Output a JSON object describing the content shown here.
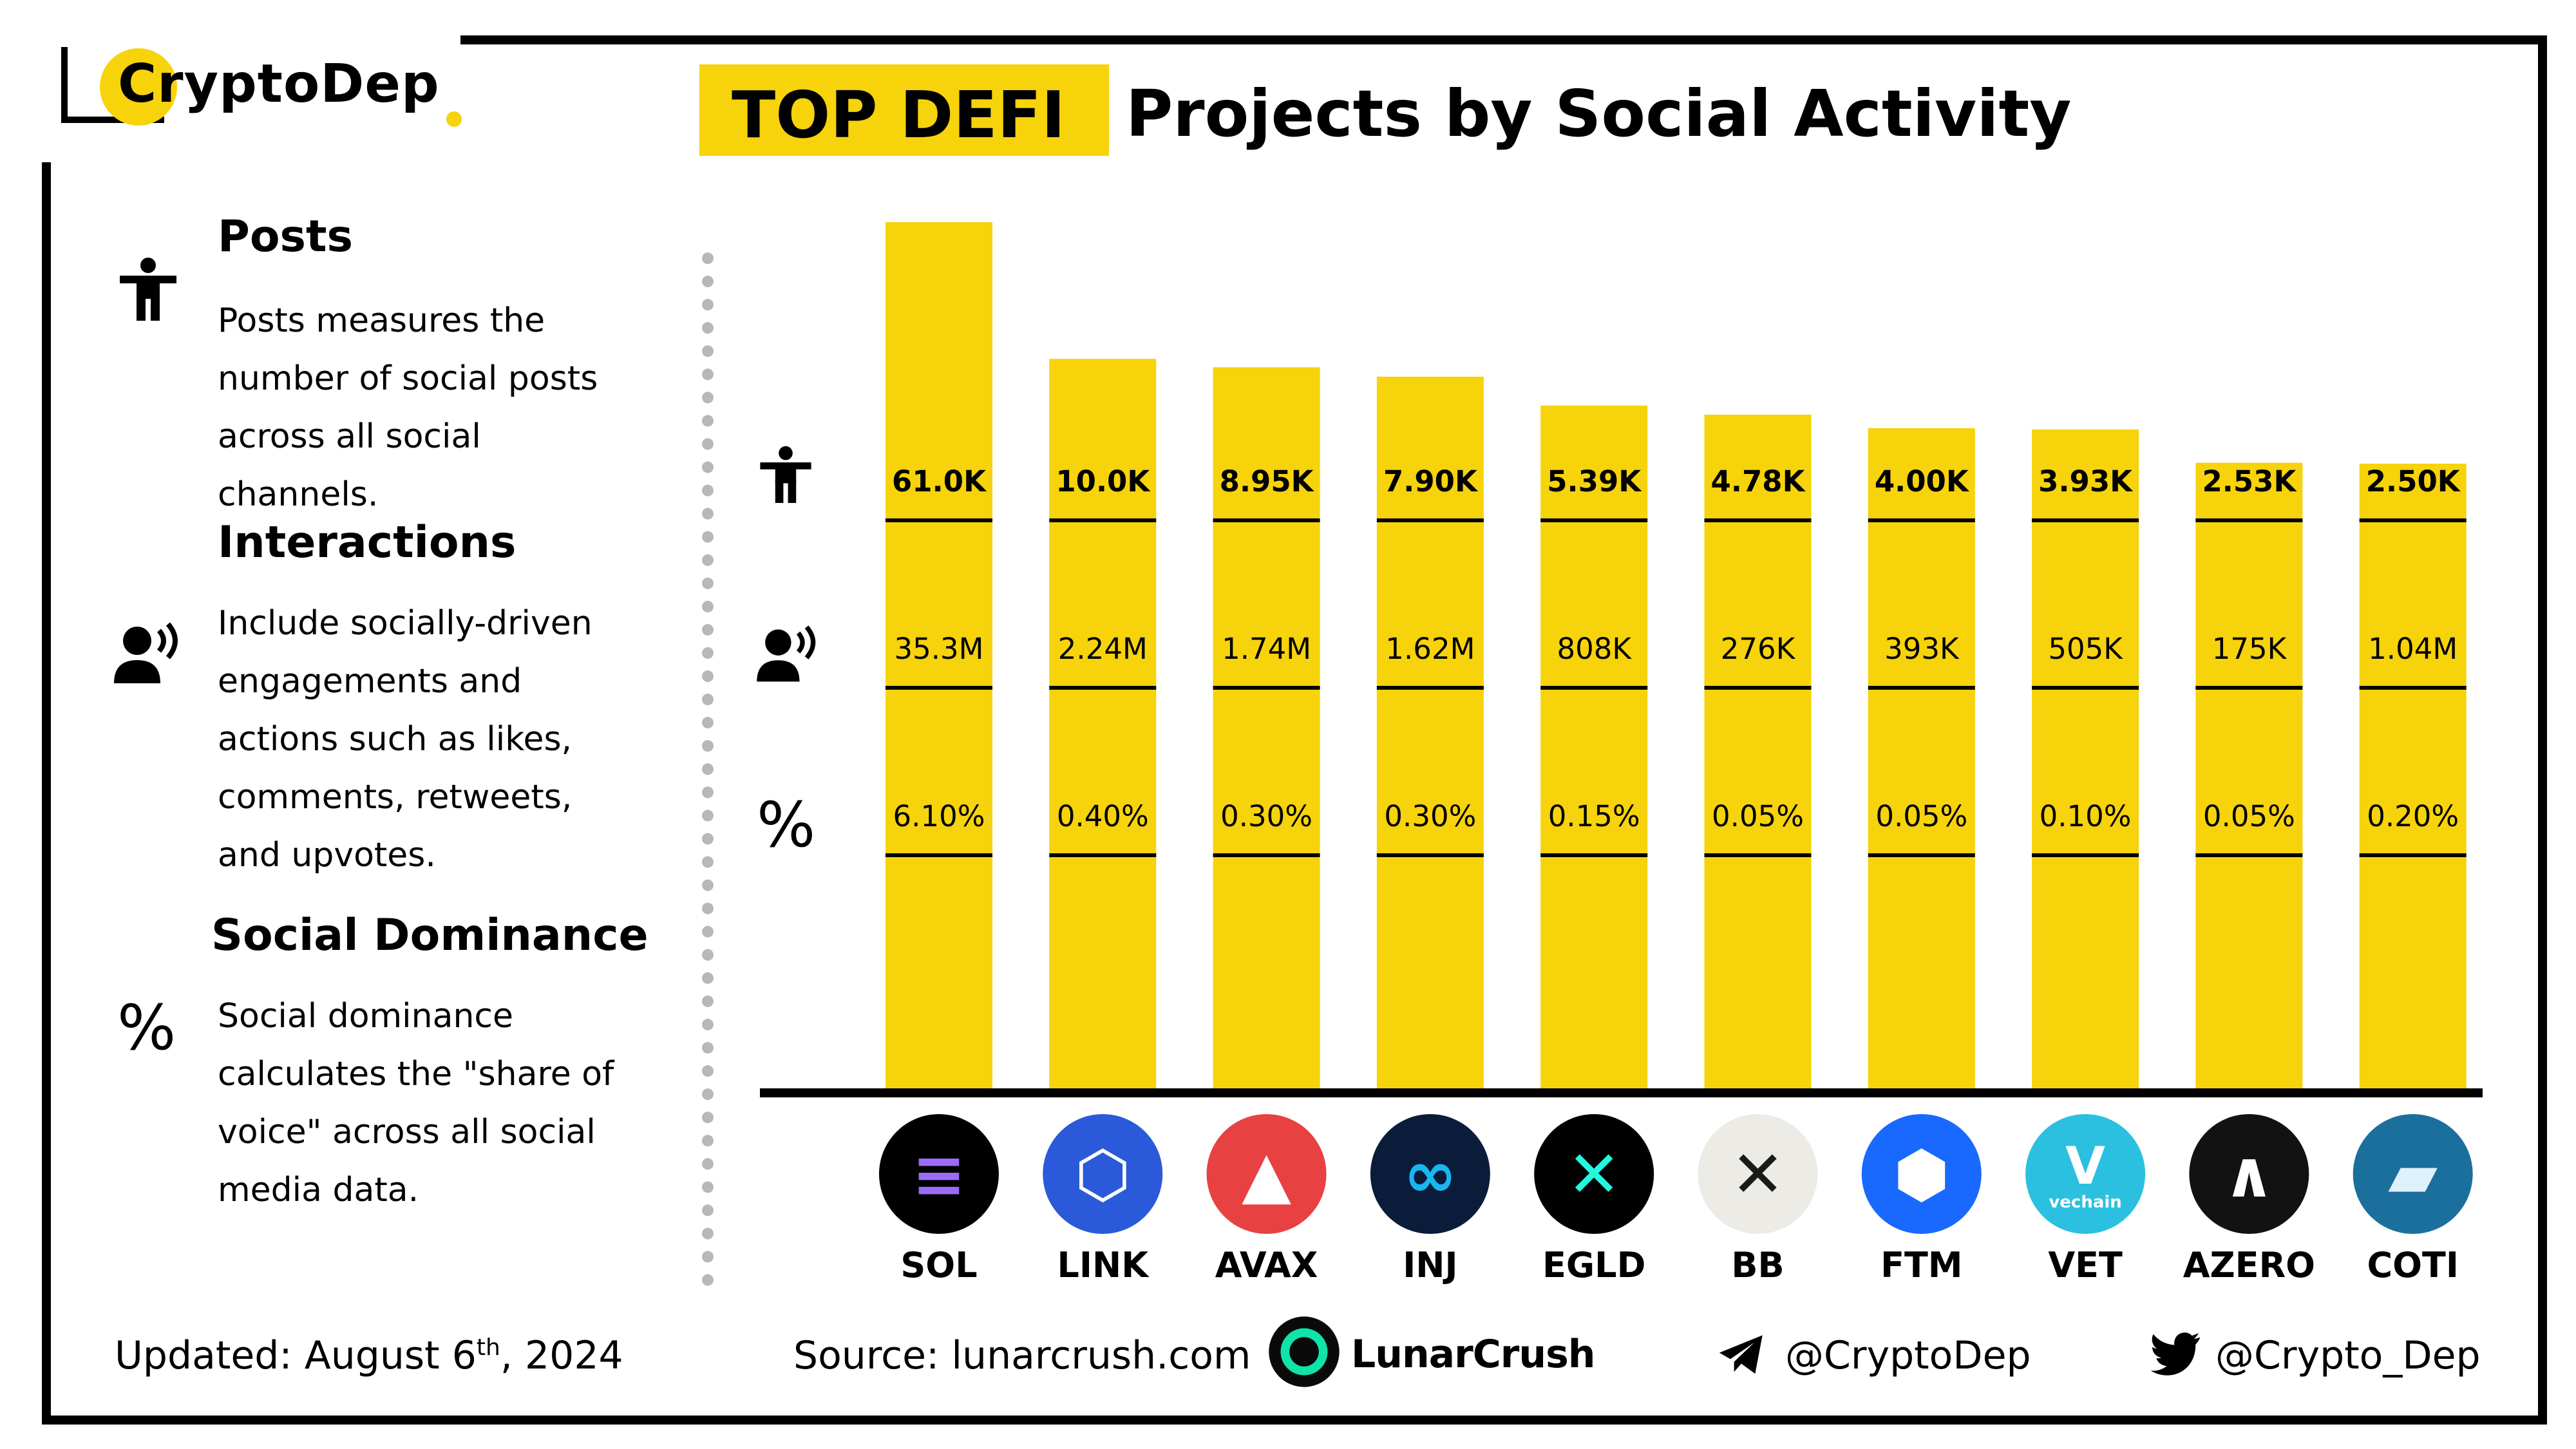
{
  "brand": {
    "name": "CryptoDep"
  },
  "title": {
    "highlight": "TOP DEFI",
    "rest": "Projects by Social Activity"
  },
  "legend": [
    {
      "heading": "Posts",
      "text": "Posts measures the number of social posts across all social channels."
    },
    {
      "heading": "Interactions",
      "text": "Include socially-driven engagements and actions such as likes, comments, retweets, and upvotes."
    },
    {
      "heading": "Social Dominance",
      "text": "Social dominance calculates the \"share of voice\" across all social media data."
    }
  ],
  "symbols": {
    "percent": "%"
  },
  "chart_data": {
    "type": "bar",
    "title": "TOP DEFI Projects by Social Activity",
    "categories": [
      "SOL",
      "LINK",
      "AVAX",
      "INJ",
      "EGLD",
      "BB",
      "FTM",
      "VET",
      "AZERO",
      "COTI"
    ],
    "series": [
      {
        "name": "Posts",
        "values": [
          61000,
          10000,
          8950,
          7900,
          5390,
          4780,
          4000,
          3930,
          2530,
          2500
        ],
        "labels": [
          "61.0K",
          "10.0K",
          "8.95K",
          "7.90K",
          "5.39K",
          "4.78K",
          "4.00K",
          "3.93K",
          "2.53K",
          "2.50K"
        ]
      },
      {
        "name": "Interactions",
        "values": [
          35300000,
          2240000,
          1740000,
          1620000,
          808000,
          276000,
          393000,
          505000,
          175000,
          1040000
        ],
        "labels": [
          "35.3M",
          "2.24M",
          "1.74M",
          "1.62M",
          "808K",
          "276K",
          "393K",
          "505K",
          "175K",
          "1.04M"
        ]
      },
      {
        "name": "Social Dominance",
        "values": [
          6.1,
          0.4,
          0.3,
          0.3,
          0.15,
          0.05,
          0.05,
          0.1,
          0.05,
          0.2
        ],
        "labels": [
          "6.10%",
          "0.40%",
          "0.30%",
          "0.30%",
          "0.15%",
          "0.05%",
          "0.05%",
          "0.10%",
          "0.05%",
          "0.20%"
        ]
      }
    ],
    "bar_color": "#f6d30b",
    "grid": false
  },
  "coins": [
    {
      "color": "#000000",
      "glyph": "≡",
      "glyph_color": "#9b6cf6"
    },
    {
      "color": "#2a5ada",
      "glyph": "⬡",
      "glyph_color": "#ffffff"
    },
    {
      "color": "#e84142",
      "glyph": "▲",
      "glyph_color": "#ffffff"
    },
    {
      "color": "#0b1c3a",
      "glyph": "∞",
      "glyph_color": "#19b7f0"
    },
    {
      "color": "#000000",
      "glyph": "✕",
      "glyph_color": "#23f7dd"
    },
    {
      "color": "#ecebe6",
      "glyph": "✕",
      "glyph_color": "#1a1a1a"
    },
    {
      "color": "#1969ff",
      "glyph": "⬢",
      "glyph_color": "#ffffff"
    },
    {
      "color": "#2bc0e0",
      "glyph": "V",
      "glyph_color": "#ffffff",
      "sub": "vechain"
    },
    {
      "color": "#121212",
      "glyph": "∧",
      "glyph_color": "#ffffff"
    },
    {
      "color": "#1b6f9c",
      "glyph": "▰",
      "glyph_color": "#dff1fb"
    }
  ],
  "footer": {
    "updated_label": "Updated:",
    "updated_date": "August 6",
    "updated_sup": "th",
    "updated_year": ", 2024",
    "source_label": "Source:",
    "source_value": "lunarcrush.com",
    "source_brand": "LunarCrush",
    "telegram": "@CryptoDep",
    "twitter": "@Crypto_Dep"
  },
  "colors": {
    "accent": "#f6d30b",
    "frame": "#000000"
  }
}
